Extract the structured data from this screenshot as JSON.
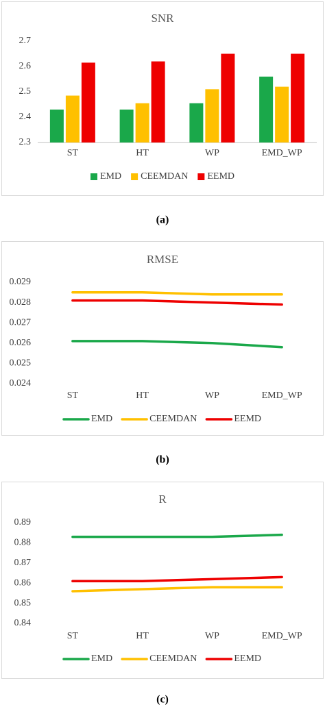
{
  "chart_data": [
    {
      "type": "bar",
      "title": "SNR",
      "caption": "(a)",
      "categories": [
        "ST",
        "HT",
        "WP",
        "EMD_WP"
      ],
      "series": [
        {
          "name": "EMD",
          "color": "#1aa84a",
          "values": [
            2.43,
            2.43,
            2.455,
            2.56
          ]
        },
        {
          "name": "CEEMDAN",
          "color": "#ffc000",
          "values": [
            2.485,
            2.455,
            2.51,
            2.52
          ]
        },
        {
          "name": "EEMD",
          "color": "#ee0000",
          "values": [
            2.615,
            2.62,
            2.65,
            2.65
          ]
        }
      ],
      "ylim": [
        2.3,
        2.7
      ],
      "yticks": [
        2.3,
        2.4,
        2.5,
        2.6,
        2.7
      ],
      "grid": false,
      "legend": "bottom"
    },
    {
      "type": "line",
      "title": "RMSE",
      "caption": "(b)",
      "categories": [
        "ST",
        "HT",
        "WP",
        "EMD_WP"
      ],
      "series": [
        {
          "name": "EMD",
          "color": "#1aa84a",
          "values": [
            0.0261,
            0.0261,
            0.026,
            0.0258
          ]
        },
        {
          "name": "CEEMDAN",
          "color": "#ffc000",
          "values": [
            0.0285,
            0.0285,
            0.0284,
            0.0284
          ]
        },
        {
          "name": "EEMD",
          "color": "#ee0000",
          "values": [
            0.0281,
            0.0281,
            0.028,
            0.0279
          ]
        }
      ],
      "ylim": [
        0.024,
        0.029
      ],
      "yticks": [
        0.024,
        0.025,
        0.026,
        0.027,
        0.028,
        0.029
      ],
      "grid": false,
      "legend": "bottom"
    },
    {
      "type": "line",
      "title": "R",
      "caption": "(c)",
      "categories": [
        "ST",
        "HT",
        "WP",
        "EMD_WP"
      ],
      "series": [
        {
          "name": "EMD",
          "color": "#1aa84a",
          "values": [
            0.883,
            0.883,
            0.883,
            0.884
          ]
        },
        {
          "name": "CEEMDAN",
          "color": "#ffc000",
          "values": [
            0.856,
            0.857,
            0.858,
            0.858
          ]
        },
        {
          "name": "EEMD",
          "color": "#ee0000",
          "values": [
            0.861,
            0.861,
            0.862,
            0.863
          ]
        }
      ],
      "ylim": [
        0.84,
        0.89
      ],
      "yticks": [
        0.84,
        0.85,
        0.86,
        0.87,
        0.88,
        0.89
      ],
      "grid": false,
      "legend": "bottom"
    }
  ]
}
